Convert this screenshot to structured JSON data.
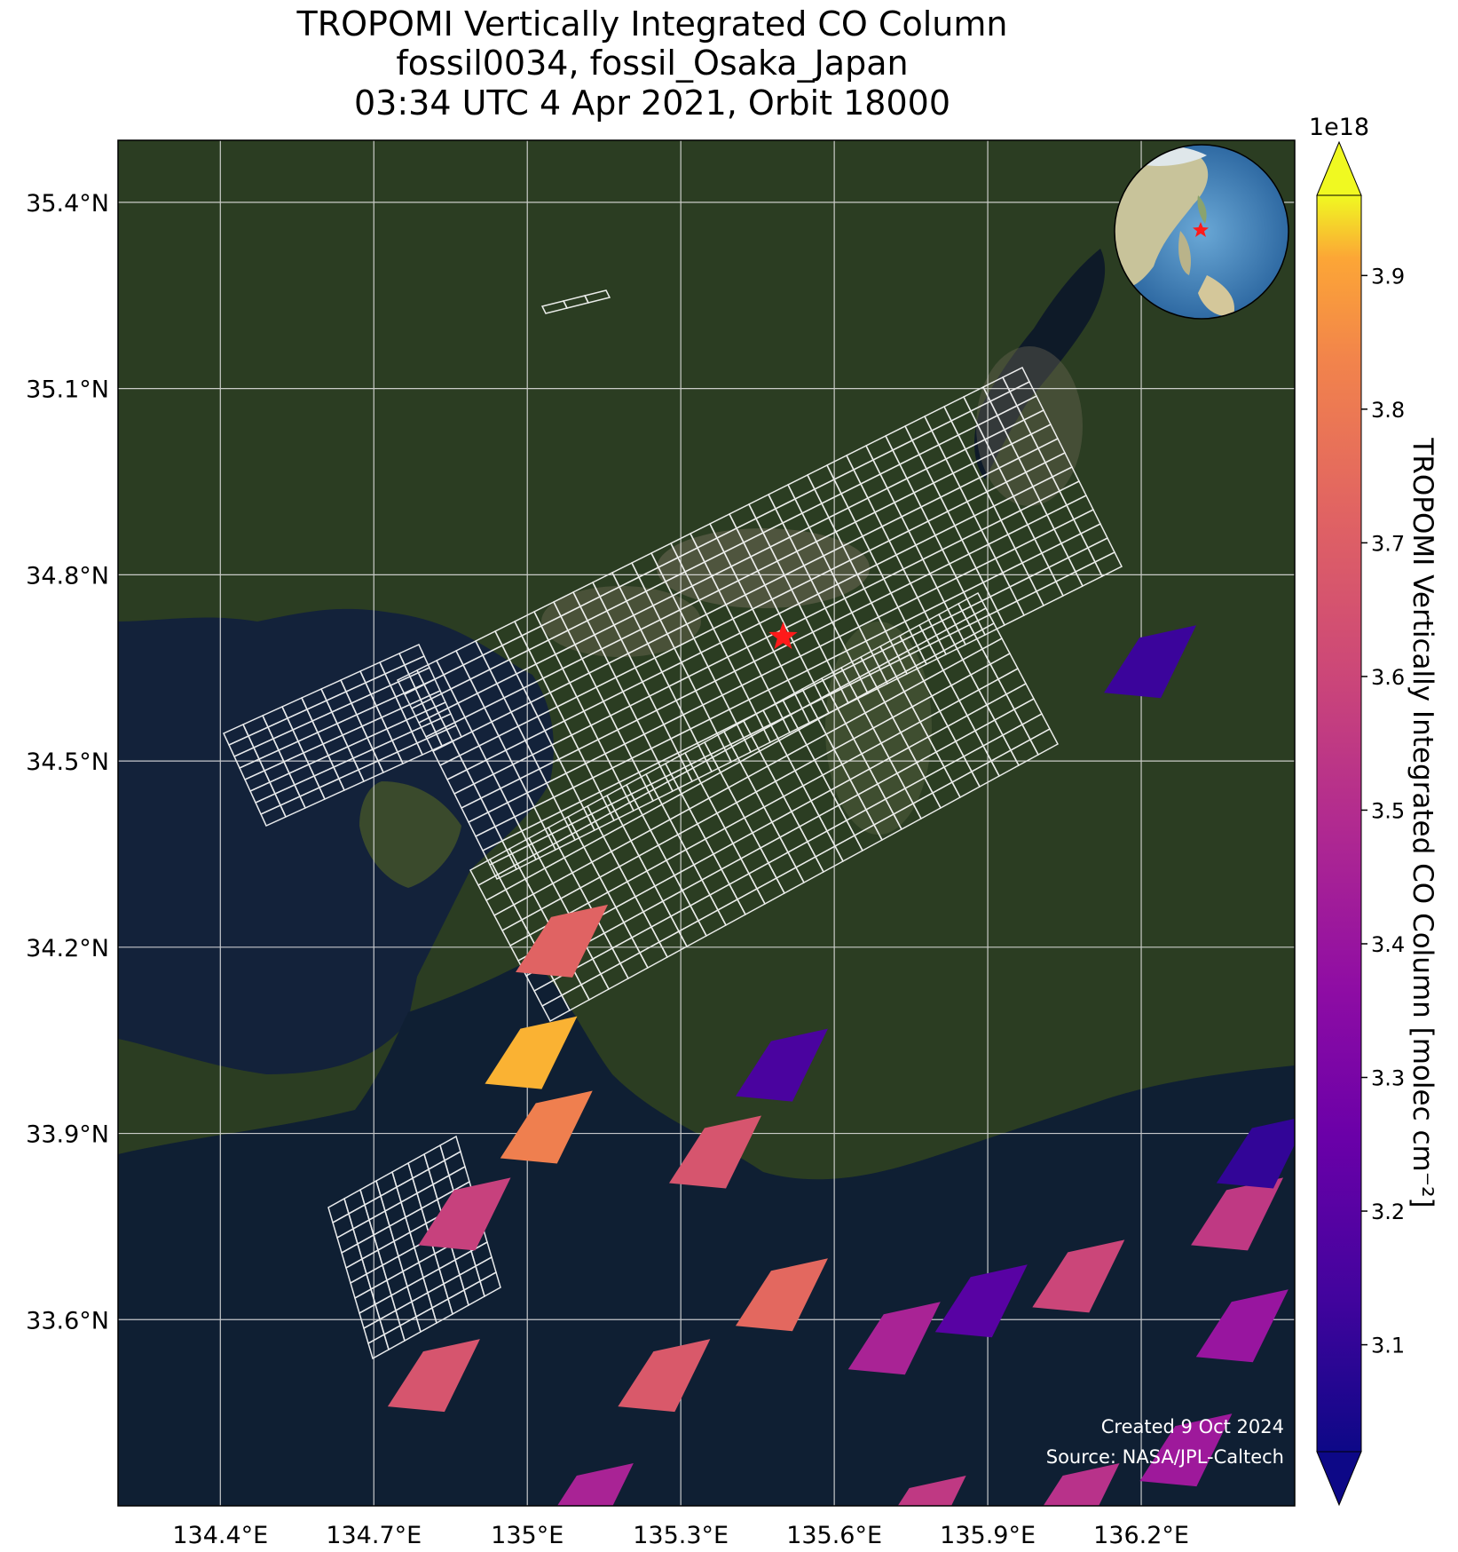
{
  "title": {
    "line1": "TROPOMI Vertically Integrated CO Column",
    "line2": "fossil0034, fossil_Osaka_Japan",
    "line3": "03:34 UTC 4 Apr 2021, Orbit 18000"
  },
  "map": {
    "basemap": "satellite imagery",
    "lon_range": [
      134.2,
      136.5
    ],
    "lat_range": [
      33.3,
      35.5
    ],
    "lon_ticks": [
      "134.4°E",
      "134.7°E",
      "135°E",
      "135.3°E",
      "135.6°E",
      "135.9°E",
      "136.2°E"
    ],
    "lat_ticks": [
      "35.4°N",
      "35.1°N",
      "34.8°N",
      "34.5°N",
      "34.2°N",
      "33.9°N",
      "33.6°N"
    ],
    "target_marker": {
      "symbol": "star",
      "color": "#ff1a1a",
      "lon": 135.5,
      "lat": 34.7
    },
    "inset": "globe locator centered on East Asia with red star at Osaka",
    "grid": true,
    "footprint_outline_color": "#ffffff"
  },
  "credits": {
    "created": "Created 9 Oct 2024",
    "source": "Source: NASA/JPL-Caltech"
  },
  "colorbar": {
    "colormap": "plasma",
    "multiplier": "1e18",
    "label": "TROPOMI Vertically Integrated CO Column [molec cm⁻²]",
    "ticks": [
      "3.1",
      "3.2",
      "3.3",
      "3.4",
      "3.5",
      "3.6",
      "3.7",
      "3.8",
      "3.9"
    ],
    "range": [
      3.02,
      3.96
    ],
    "extend": "both"
  },
  "chart_data": {
    "type": "heatmap",
    "units": "1e18 molec cm^-2",
    "pixels": [
      {
        "lon": 135.05,
        "lat": 34.2,
        "value": 3.72
      },
      {
        "lon": 134.99,
        "lat": 34.02,
        "value": 3.92
      },
      {
        "lon": 135.02,
        "lat": 33.9,
        "value": 3.82
      },
      {
        "lon": 134.86,
        "lat": 33.76,
        "value": 3.58
      },
      {
        "lon": 134.8,
        "lat": 33.5,
        "value": 3.66
      },
      {
        "lon": 135.48,
        "lat": 34.0,
        "value": 3.16
      },
      {
        "lon": 135.35,
        "lat": 33.86,
        "value": 3.66
      },
      {
        "lon": 135.48,
        "lat": 33.63,
        "value": 3.74
      },
      {
        "lon": 135.25,
        "lat": 33.5,
        "value": 3.68
      },
      {
        "lon": 135.1,
        "lat": 33.3,
        "value": 3.46
      },
      {
        "lon": 135.7,
        "lat": 33.56,
        "value": 3.46
      },
      {
        "lon": 135.87,
        "lat": 33.62,
        "value": 3.2
      },
      {
        "lon": 136.06,
        "lat": 33.66,
        "value": 3.6
      },
      {
        "lon": 135.75,
        "lat": 33.28,
        "value": 3.55
      },
      {
        "lon": 136.37,
        "lat": 33.76,
        "value": 3.55
      },
      {
        "lon": 136.38,
        "lat": 33.58,
        "value": 3.4
      },
      {
        "lon": 136.42,
        "lat": 33.86,
        "value": 3.1
      },
      {
        "lon": 136.27,
        "lat": 33.38,
        "value": 3.42
      },
      {
        "lon": 136.05,
        "lat": 33.3,
        "value": 3.52
      },
      {
        "lon": 136.2,
        "lat": 34.65,
        "value": 3.12
      }
    ]
  }
}
